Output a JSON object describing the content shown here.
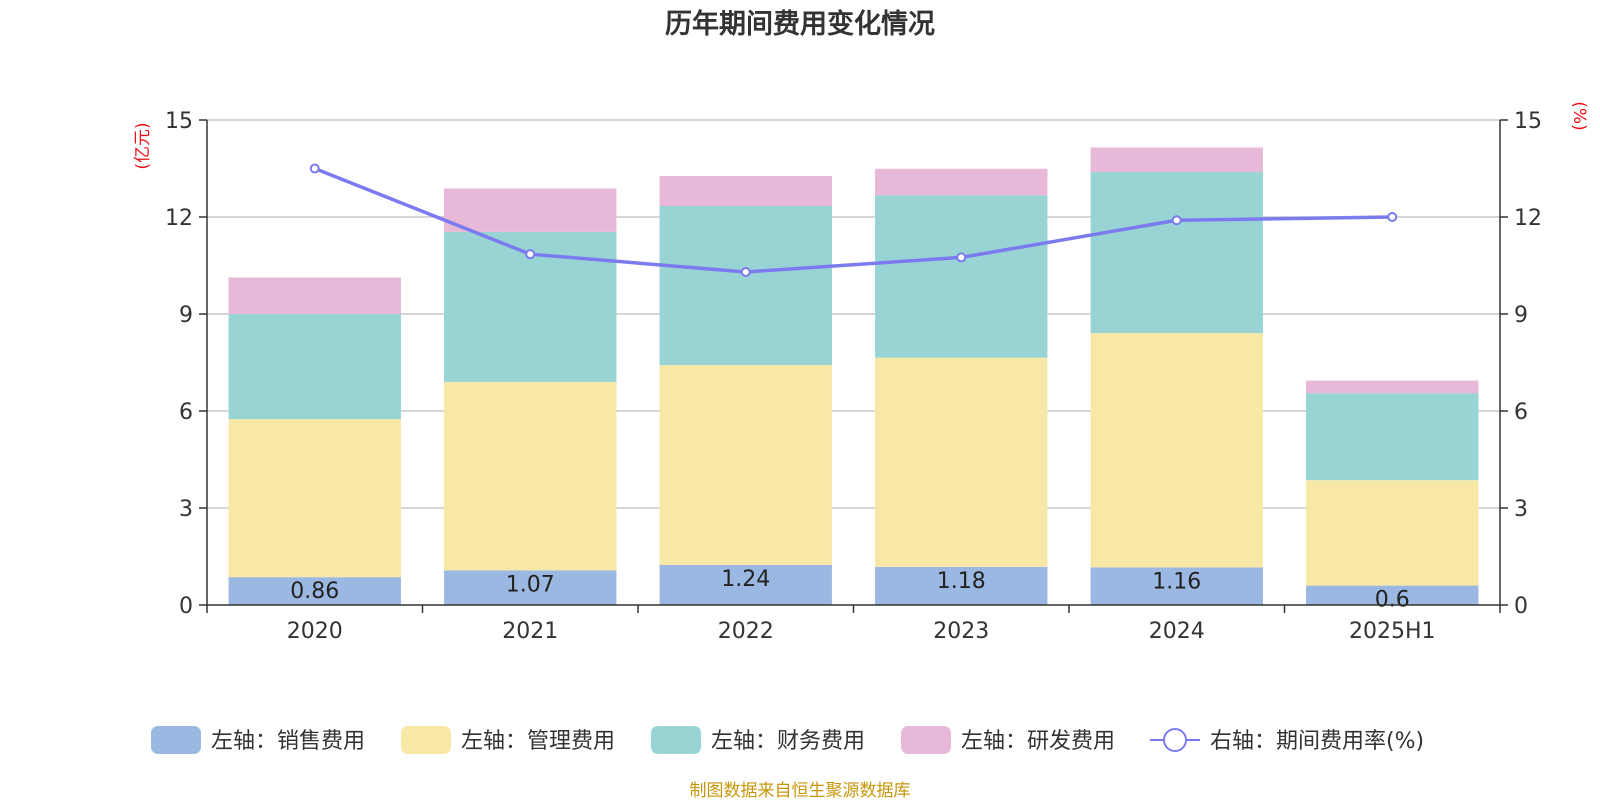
{
  "colors": {
    "sales": "#9bb8e2",
    "admin": "#f8e8a8",
    "finance": "#98d4d4",
    "rnd": "#e8b8d8",
    "rate_line": "#7b7bef",
    "axis_unit": "#e8101a",
    "grid": "#c8c8c8",
    "axis": "#333333",
    "source_text": "#c8960a"
  },
  "chart_data": {
    "type": "bar",
    "stacked": true,
    "title": "历年期间费用变化情况",
    "categories": [
      "2020",
      "2021",
      "2022",
      "2023",
      "2024",
      "2025H1"
    ],
    "y_left": {
      "label": "(亿元)",
      "ticks": [
        0,
        3,
        6,
        9,
        12,
        15
      ],
      "ylim": [
        0,
        15
      ]
    },
    "y_right": {
      "label": "(%)",
      "ticks": [
        0,
        3,
        6,
        9,
        12,
        15
      ],
      "ylim": [
        0,
        15
      ]
    },
    "grid": true,
    "legend_position": "bottom",
    "series": [
      {
        "key": "sales",
        "name": "左轴：销售费用",
        "axis": "left",
        "values": [
          0.86,
          1.07,
          1.24,
          1.18,
          1.16,
          0.6
        ],
        "labels": [
          "0.86",
          "1.07",
          "1.24",
          "1.18",
          "1.16",
          "0.6"
        ]
      },
      {
        "key": "admin",
        "name": "左轴：管理费用",
        "axis": "left",
        "values": [
          4.89,
          5.83,
          6.18,
          6.47,
          7.25,
          3.26
        ]
      },
      {
        "key": "finance",
        "name": "左轴：财务费用",
        "axis": "left",
        "values": [
          3.25,
          4.64,
          4.92,
          5.02,
          4.98,
          2.69
        ]
      },
      {
        "key": "rnd",
        "name": "左轴：研发费用",
        "axis": "left",
        "values": [
          1.13,
          1.34,
          0.93,
          0.82,
          0.76,
          0.39
        ]
      },
      {
        "key": "rate",
        "name": "右轴：期间费用率(%)",
        "axis": "right",
        "type": "line",
        "values": [
          13.5,
          10.85,
          10.3,
          10.75,
          11.9,
          12.0
        ]
      }
    ],
    "source": "制图数据来自恒生聚源数据库"
  }
}
